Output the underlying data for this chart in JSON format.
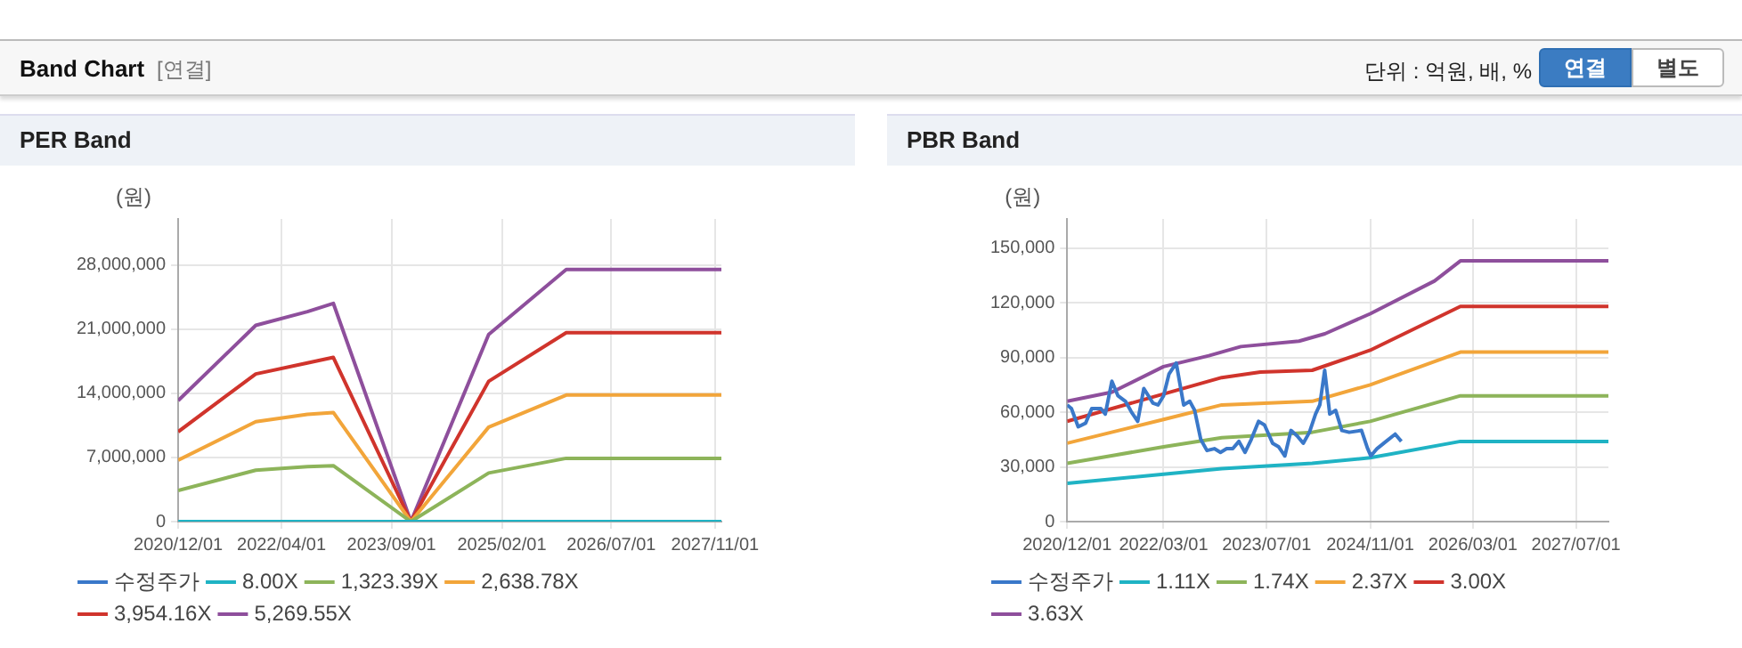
{
  "chart_data": [
    {
      "type": "other",
      "title": "Band Chart",
      "annotations": [
        "[연결]",
        "단위 : 억원, 배, %",
        "연결",
        "별도"
      ]
    },
    {
      "type": "line",
      "title": "PER Band",
      "ylabel": "(원)",
      "x": [
        "2020-12-01",
        "2021-12-01",
        "2022-08-01",
        "2022-12-01",
        "2023-12-01",
        "2024-12-01",
        "2025-12-01",
        "2027-12-01"
      ],
      "series": [
        {
          "name": "수정주가",
          "color": "#3a78c9",
          "values": [
            null,
            null,
            null,
            null,
            null,
            null,
            null,
            null
          ]
        },
        {
          "name": "8.00X",
          "color": "#1fb3c4",
          "values": [
            0,
            0,
            0,
            0,
            0,
            0,
            0,
            0
          ]
        },
        {
          "name": "1,323.39X",
          "color": "#8db45a",
          "values": [
            3400000,
            5600000,
            6000000,
            6100000,
            0,
            5300000,
            6900000,
            6900000
          ]
        },
        {
          "name": "2,638.78X",
          "color": "#f2a53a",
          "values": [
            6700000,
            10900000,
            11700000,
            11900000,
            0,
            10300000,
            13800000,
            13800000
          ]
        },
        {
          "name": "3,954.16X",
          "color": "#d0342c",
          "values": [
            9800000,
            16100000,
            17300000,
            17900000,
            0,
            15300000,
            20600000,
            20600000
          ]
        },
        {
          "name": "5,269.55X",
          "color": "#8e4f9c",
          "values": [
            13200000,
            21400000,
            22900000,
            23800000,
            0,
            20400000,
            27500000,
            27500000
          ]
        }
      ],
      "xlim": [
        "2020-12-01",
        "2027-12-01"
      ],
      "xticks": [
        {
          "value": "2020-12-01",
          "label": "2020/12/01"
        },
        {
          "value": "2022-04-01",
          "label": "2022/04/01"
        },
        {
          "value": "2023-09-01",
          "label": "2023/09/01"
        },
        {
          "value": "2025-02-01",
          "label": "2025/02/01"
        },
        {
          "value": "2026-07-01",
          "label": "2026/07/01"
        },
        {
          "value": "2027-11-01",
          "label": "2027/11/01"
        }
      ],
      "ylim": [
        0,
        33000000
      ],
      "yticks": [
        0,
        {
          "value": 7000000,
          "label": "7,000,000"
        },
        {
          "value": 14000000,
          "label": "14,000,000"
        },
        {
          "value": 21000000,
          "label": "21,000,000"
        },
        {
          "value": 28000000,
          "label": "28,000,000"
        }
      ],
      "grid": true,
      "legend": "bottom",
      "marker": "none",
      "line_style": "solid"
    },
    {
      "type": "line",
      "title": "PBR Band",
      "ylabel": "(원)",
      "series": [
        {
          "name": "수정주가",
          "color": "#3a78c9",
          "x": [
            "2020-12-01",
            "2020-12-21",
            "2021-01-22",
            "2021-02-26",
            "2021-03-27",
            "2021-05-09",
            "2021-05-30",
            "2021-06-30",
            "2021-07-29",
            "2021-09-02",
            "2021-10-01",
            "2021-10-30",
            "2021-11-28",
            "2022-01-10",
            "2022-02-03",
            "2022-03-01",
            "2022-03-27",
            "2022-04-30",
            "2022-06-04",
            "2022-07-03",
            "2022-07-26",
            "2022-08-24",
            "2022-09-22",
            "2022-10-27",
            "2022-11-25",
            "2022-12-24",
            "2023-01-22",
            "2023-02-20",
            "2023-03-21",
            "2023-04-19",
            "2023-05-24",
            "2023-06-21",
            "2023-07-29",
            "2023-08-27",
            "2023-09-25",
            "2023-10-24",
            "2023-11-22",
            "2023-12-21",
            "2024-01-19",
            "2024-02-17",
            "2024-03-08",
            "2024-03-31",
            "2024-04-24",
            "2024-05-22",
            "2024-06-20",
            "2024-07-25",
            "2024-09-21",
            "2024-10-20",
            "2024-11-04",
            "2024-12-03",
            "2025-01-15",
            "2025-02-27",
            "2025-03-28"
          ],
          "values": [
            64000,
            62000,
            52000,
            54000,
            62000,
            62000,
            59000,
            77000,
            69000,
            66000,
            60000,
            55000,
            73000,
            65000,
            64000,
            69000,
            81000,
            87000,
            64000,
            66000,
            61000,
            45000,
            39000,
            40000,
            38000,
            40000,
            40000,
            44000,
            38000,
            45000,
            55000,
            53000,
            43000,
            41000,
            36000,
            50000,
            47000,
            43000,
            49000,
            59000,
            64000,
            83000,
            59000,
            61000,
            50000,
            49000,
            50000,
            40000,
            36000,
            40000,
            44000,
            48000,
            44000
          ]
        },
        {
          "name": "1.11X",
          "color": "#1fb3c4",
          "x": [
            "2020-12-01",
            "2022-03-01",
            "2022-12-01",
            "2024-02-01",
            "2024-11-01",
            "2026-01-01",
            "2027-12-01"
          ],
          "values": [
            21000,
            26000,
            29000,
            32000,
            35000,
            44000,
            44000
          ]
        },
        {
          "name": "1.74X",
          "color": "#8db45a",
          "x": [
            "2020-12-01",
            "2022-03-01",
            "2022-12-01",
            "2024-02-01",
            "2024-11-01",
            "2026-01-01",
            "2027-12-01"
          ],
          "values": [
            32000,
            41000,
            46000,
            49000,
            55000,
            69000,
            69000
          ]
        },
        {
          "name": "2.37X",
          "color": "#f2a53a",
          "x": [
            "2020-12-01",
            "2022-03-01",
            "2022-12-01",
            "2024-02-01",
            "2024-11-01",
            "2026-01-01",
            "2027-12-01"
          ],
          "values": [
            43000,
            56000,
            64000,
            66000,
            75000,
            93000,
            93000
          ]
        },
        {
          "name": "3.00X",
          "color": "#d0342c",
          "x": [
            "2020-12-01",
            "2022-03-01",
            "2022-12-01",
            "2023-06-01",
            "2024-02-01",
            "2024-11-01",
            "2026-01-01",
            "2027-12-01"
          ],
          "values": [
            55000,
            70000,
            79000,
            82000,
            83000,
            94000,
            118000,
            118000
          ]
        },
        {
          "name": "3.63X",
          "color": "#8e4f9c",
          "x": [
            "2020-12-01",
            "2021-07-01",
            "2022-03-01",
            "2022-10-01",
            "2023-03-01",
            "2023-12-01",
            "2024-04-01",
            "2024-11-01",
            "2025-09-01",
            "2026-01-01",
            "2027-12-01"
          ],
          "values": [
            66000,
            71000,
            85000,
            91000,
            96000,
            99000,
            103000,
            114000,
            132000,
            143000,
            143000
          ]
        }
      ],
      "xlim": [
        "2020-12-01",
        "2027-12-01"
      ],
      "xticks": [
        {
          "value": "2020-12-01",
          "label": "2020/12/01"
        },
        {
          "value": "2022-03-01",
          "label": "2022/03/01"
        },
        {
          "value": "2023-07-01",
          "label": "2023/07/01"
        },
        {
          "value": "2024-11-01",
          "label": "2024/11/01"
        },
        {
          "value": "2026-03-01",
          "label": "2026/03/01"
        },
        {
          "value": "2027-07-01",
          "label": "2027/07/01"
        }
      ],
      "ylim": [
        0,
        166000
      ],
      "yticks": [
        0,
        {
          "value": 30000,
          "label": "30,000"
        },
        {
          "value": 60000,
          "label": "60,000"
        },
        {
          "value": 90000,
          "label": "90,000"
        },
        {
          "value": 120000,
          "label": "120,000"
        },
        {
          "value": 150000,
          "label": "150,000"
        }
      ],
      "grid": true,
      "legend": "bottom",
      "marker": "none",
      "line_style": "solid"
    }
  ]
}
